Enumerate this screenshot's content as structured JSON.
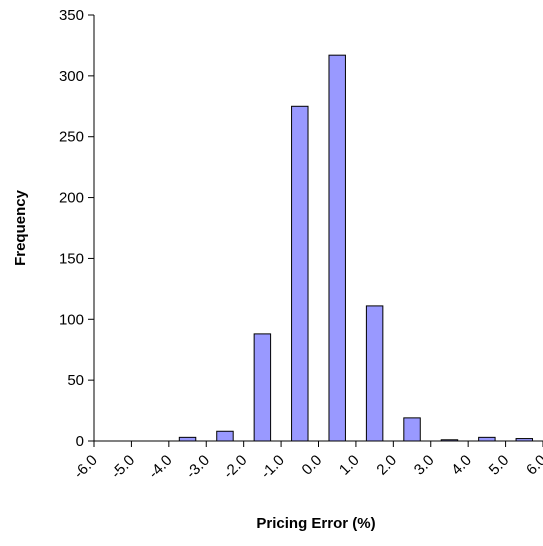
{
  "chart_data": {
    "type": "bar",
    "xlabel": "Pricing Error (%)",
    "ylabel": "Frequency",
    "ylim": [
      0,
      350
    ],
    "yticks": [
      0,
      50,
      100,
      150,
      200,
      250,
      300,
      350
    ],
    "xtick_labels": [
      "-6.0",
      "-5.0",
      "-4.0",
      "-3.0",
      "-2.0",
      "-1.0",
      "0.0",
      "1.0",
      "2.0",
      "3.0",
      "4.0",
      "5.0",
      "6.0"
    ],
    "bins": [
      {
        "center": -5.5,
        "value": 0
      },
      {
        "center": -4.5,
        "value": 0
      },
      {
        "center": -3.5,
        "value": 3
      },
      {
        "center": -2.5,
        "value": 8
      },
      {
        "center": -1.5,
        "value": 88
      },
      {
        "center": -0.5,
        "value": 275
      },
      {
        "center": 0.5,
        "value": 317
      },
      {
        "center": 1.5,
        "value": 111
      },
      {
        "center": 2.5,
        "value": 19
      },
      {
        "center": 3.5,
        "value": 1
      },
      {
        "center": 4.5,
        "value": 3
      },
      {
        "center": 5.5,
        "value": 2
      }
    ],
    "bar_color": "#9999ff",
    "bar_edge_color": "#000000",
    "grid": false,
    "legend": "none"
  }
}
